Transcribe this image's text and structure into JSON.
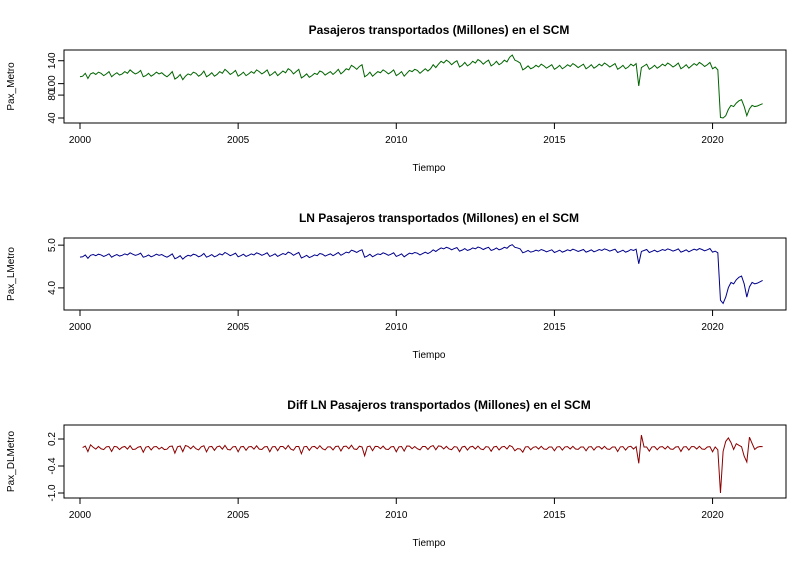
{
  "chart_data": [
    {
      "type": "line",
      "title": "Pasajeros transportados (Millones) en el SCM",
      "xlabel": "Tiempo",
      "ylabel": "Pax_Metro",
      "xlim": [
        2000,
        2021.5
      ],
      "ylim": [
        40,
        150
      ],
      "xticks": [
        2000,
        2005,
        2010,
        2015,
        2020
      ],
      "yticks": [
        40,
        80,
        100,
        140
      ],
      "color": "#006400",
      "grid": false,
      "series": [
        {
          "start": 2000.0,
          "frequency": "monthly",
          "values": [
            112,
            113,
            118,
            109,
            117,
            119,
            116,
            120,
            118,
            114,
            117,
            121,
            112,
            116,
            119,
            115,
            117,
            121,
            118,
            124,
            120,
            117,
            119,
            123,
            112,
            114,
            118,
            113,
            116,
            120,
            117,
            119,
            115,
            112,
            116,
            121,
            108,
            111,
            116,
            107,
            113,
            117,
            115,
            120,
            118,
            113,
            116,
            122,
            112,
            115,
            119,
            113,
            116,
            121,
            118,
            125,
            121,
            116,
            119,
            123,
            113,
            116,
            120,
            114,
            117,
            121,
            118,
            124,
            121,
            117,
            120,
            124,
            114,
            117,
            121,
            114,
            118,
            122,
            119,
            126,
            123,
            117,
            121,
            125,
            110,
            113,
            117,
            111,
            114,
            118,
            116,
            122,
            120,
            115,
            118,
            121,
            116,
            120,
            125,
            117,
            121,
            126,
            124,
            132,
            129,
            125,
            130,
            133,
            112,
            115,
            120,
            113,
            117,
            121,
            119,
            124,
            121,
            117,
            120,
            124,
            114,
            117,
            121,
            113,
            118,
            123,
            121,
            125,
            123,
            118,
            122,
            126,
            122,
            126,
            133,
            128,
            134,
            139,
            136,
            141,
            138,
            133,
            137,
            140,
            129,
            132,
            137,
            131,
            134,
            139,
            136,
            142,
            139,
            134,
            138,
            141,
            131,
            134,
            139,
            133,
            136,
            141,
            138,
            146,
            150,
            141,
            139,
            136,
            124,
            127,
            131,
            126,
            128,
            132,
            129,
            134,
            131,
            127,
            130,
            133,
            125,
            128,
            132,
            126,
            129,
            133,
            130,
            135,
            132,
            128,
            131,
            134,
            126,
            129,
            133,
            127,
            130,
            134,
            131,
            136,
            133,
            129,
            132,
            135,
            125,
            128,
            132,
            126,
            129,
            134,
            131,
            135,
            96,
            128,
            131,
            134,
            125,
            128,
            132,
            127,
            130,
            134,
            131,
            136,
            133,
            129,
            132,
            136,
            126,
            129,
            133,
            127,
            131,
            135,
            132,
            137,
            134,
            130,
            133,
            137,
            126,
            129,
            124,
            41,
            38,
            44,
            55,
            62,
            60,
            66,
            70,
            72,
            60,
            44,
            56,
            62,
            60,
            61,
            63,
            65
          ]
        }
      ]
    },
    {
      "type": "line",
      "title": "LN Pasajeros transportados (Millones) en el SCM",
      "xlabel": "Tiempo",
      "ylabel": "Pax_LMetro",
      "xlim": [
        2000,
        2021.5
      ],
      "ylim": [
        3.6,
        5.05
      ],
      "xticks": [
        2000,
        2005,
        2010,
        2015,
        2020
      ],
      "yticks": [
        4.0,
        5.0
      ],
      "ytick_labels": [
        "4.0",
        "5.0"
      ],
      "color": "#00008b",
      "grid": false,
      "transform_of": 0,
      "transform": "ln"
    },
    {
      "type": "line",
      "title": "Diff LN Pasajeros transportados (Millones) en el SCM",
      "xlabel": "Tiempo",
      "ylabel": "Pax_DLMetro",
      "xlim": [
        2000,
        2021.5
      ],
      "ylim": [
        -1.0,
        0.4
      ],
      "xticks": [
        2000,
        2005,
        2010,
        2015,
        2020
      ],
      "yticks": [
        -1.0,
        -0.4,
        0.2
      ],
      "ytick_labels": [
        "-1.0",
        "-0.4",
        "0.2"
      ],
      "color": "#8b0000",
      "grid": false,
      "transform_of": 0,
      "transform": "diff-ln"
    }
  ]
}
